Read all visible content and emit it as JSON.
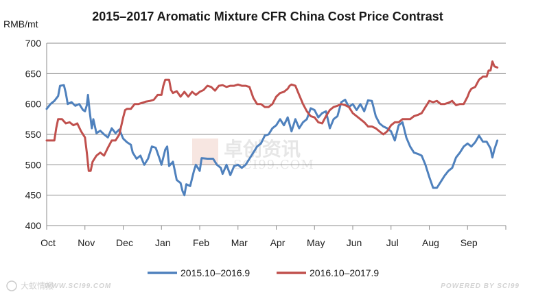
{
  "chart_data": {
    "type": "line",
    "title": "2015–2017 Aromatic Mixture CFR China Cost Price Contrast",
    "ylabel": "RMB/mt",
    "xlabel": "",
    "ylim": [
      400,
      700
    ],
    "yticks": [
      400,
      450,
      500,
      550,
      600,
      650,
      700
    ],
    "categories": [
      "Oct",
      "Nov",
      "Dec",
      "Jan",
      "Feb",
      "Mar",
      "Apr",
      "May",
      "Jun",
      "Jul",
      "Aug",
      "Sep"
    ],
    "grid": true,
    "legend": "bottom",
    "x_unit": "month index (0 = start of Oct)",
    "series": [
      {
        "name": "2015.10–2016.9",
        "color": "#4f81bd",
        "points": [
          [
            0.0,
            592
          ],
          [
            0.1,
            600
          ],
          [
            0.2,
            605
          ],
          [
            0.3,
            613
          ],
          [
            0.35,
            630
          ],
          [
            0.45,
            631
          ],
          [
            0.5,
            618
          ],
          [
            0.55,
            600
          ],
          [
            0.65,
            603
          ],
          [
            0.75,
            597
          ],
          [
            0.85,
            600
          ],
          [
            0.95,
            590
          ],
          [
            1.0,
            588
          ],
          [
            1.05,
            598
          ],
          [
            1.08,
            615
          ],
          [
            1.12,
            590
          ],
          [
            1.18,
            560
          ],
          [
            1.22,
            575
          ],
          [
            1.3,
            552
          ],
          [
            1.4,
            556
          ],
          [
            1.5,
            550
          ],
          [
            1.6,
            545
          ],
          [
            1.7,
            560
          ],
          [
            1.8,
            552
          ],
          [
            1.9,
            558
          ],
          [
            2.0,
            543
          ],
          [
            2.1,
            537
          ],
          [
            2.2,
            533
          ],
          [
            2.25,
            520
          ],
          [
            2.35,
            510
          ],
          [
            2.45,
            515
          ],
          [
            2.55,
            500
          ],
          [
            2.65,
            510
          ],
          [
            2.75,
            530
          ],
          [
            2.85,
            528
          ],
          [
            2.95,
            510
          ],
          [
            3.0,
            500
          ],
          [
            3.1,
            525
          ],
          [
            3.15,
            530
          ],
          [
            3.2,
            498
          ],
          [
            3.3,
            505
          ],
          [
            3.4,
            475
          ],
          [
            3.5,
            470
          ],
          [
            3.55,
            457
          ],
          [
            3.6,
            450
          ],
          [
            3.65,
            468
          ],
          [
            3.75,
            465
          ],
          [
            3.85,
            490
          ],
          [
            3.9,
            500
          ],
          [
            4.0,
            490
          ],
          [
            4.05,
            511
          ],
          [
            4.2,
            510
          ],
          [
            4.35,
            510
          ],
          [
            4.45,
            500
          ],
          [
            4.55,
            495
          ],
          [
            4.6,
            485
          ],
          [
            4.7,
            500
          ],
          [
            4.8,
            483
          ],
          [
            4.9,
            498
          ],
          [
            5.0,
            500
          ],
          [
            5.1,
            495
          ],
          [
            5.2,
            500
          ],
          [
            5.3,
            510
          ],
          [
            5.4,
            520
          ],
          [
            5.5,
            530
          ],
          [
            5.6,
            535
          ],
          [
            5.7,
            548
          ],
          [
            5.8,
            550
          ],
          [
            5.9,
            560
          ],
          [
            6.0,
            565
          ],
          [
            6.1,
            575
          ],
          [
            6.2,
            565
          ],
          [
            6.3,
            578
          ],
          [
            6.4,
            555
          ],
          [
            6.5,
            575
          ],
          [
            6.6,
            560
          ],
          [
            6.7,
            570
          ],
          [
            6.8,
            575
          ],
          [
            6.9,
            593
          ],
          [
            7.0,
            590
          ],
          [
            7.1,
            578
          ],
          [
            7.2,
            585
          ],
          [
            7.3,
            588
          ],
          [
            7.4,
            560
          ],
          [
            7.5,
            575
          ],
          [
            7.6,
            580
          ],
          [
            7.7,
            603
          ],
          [
            7.8,
            607
          ],
          [
            7.9,
            595
          ],
          [
            8.0,
            600
          ],
          [
            8.1,
            590
          ],
          [
            8.2,
            600
          ],
          [
            8.3,
            588
          ],
          [
            8.4,
            606
          ],
          [
            8.5,
            605
          ],
          [
            8.6,
            580
          ],
          [
            8.7,
            568
          ],
          [
            8.8,
            563
          ],
          [
            8.9,
            560
          ],
          [
            9.0,
            555
          ],
          [
            9.1,
            540
          ],
          [
            9.2,
            565
          ],
          [
            9.3,
            570
          ],
          [
            9.4,
            545
          ],
          [
            9.5,
            530
          ],
          [
            9.6,
            520
          ],
          [
            9.7,
            518
          ],
          [
            9.8,
            515
          ],
          [
            9.9,
            500
          ],
          [
            10.0,
            480
          ],
          [
            10.1,
            462
          ],
          [
            10.2,
            462
          ],
          [
            10.3,
            472
          ],
          [
            10.4,
            482
          ],
          [
            10.5,
            490
          ],
          [
            10.6,
            495
          ],
          [
            10.7,
            512
          ],
          [
            10.8,
            520
          ],
          [
            10.9,
            530
          ],
          [
            11.0,
            535
          ],
          [
            11.1,
            530
          ],
          [
            11.2,
            537
          ],
          [
            11.3,
            548
          ],
          [
            11.4,
            538
          ],
          [
            11.5,
            538
          ],
          [
            11.6,
            527
          ],
          [
            11.65,
            512
          ],
          [
            11.7,
            525
          ],
          [
            11.78,
            540
          ]
        ]
      },
      {
        "name": "2016.10–2017.9",
        "color": "#c0504d",
        "points": [
          [
            0.0,
            540
          ],
          [
            0.1,
            540
          ],
          [
            0.2,
            540
          ],
          [
            0.25,
            560
          ],
          [
            0.3,
            575
          ],
          [
            0.4,
            575
          ],
          [
            0.5,
            568
          ],
          [
            0.6,
            570
          ],
          [
            0.7,
            565
          ],
          [
            0.8,
            568
          ],
          [
            0.9,
            555
          ],
          [
            1.0,
            545
          ],
          [
            1.05,
            520
          ],
          [
            1.1,
            490
          ],
          [
            1.15,
            490
          ],
          [
            1.2,
            505
          ],
          [
            1.3,
            515
          ],
          [
            1.4,
            520
          ],
          [
            1.5,
            515
          ],
          [
            1.6,
            528
          ],
          [
            1.7,
            540
          ],
          [
            1.8,
            540
          ],
          [
            1.9,
            550
          ],
          [
            2.0,
            578
          ],
          [
            2.05,
            590
          ],
          [
            2.1,
            592
          ],
          [
            2.2,
            592
          ],
          [
            2.3,
            600
          ],
          [
            2.4,
            600
          ],
          [
            2.5,
            602
          ],
          [
            2.6,
            604
          ],
          [
            2.7,
            605
          ],
          [
            2.8,
            607
          ],
          [
            2.9,
            615
          ],
          [
            3.0,
            615
          ],
          [
            3.05,
            630
          ],
          [
            3.1,
            640
          ],
          [
            3.2,
            640
          ],
          [
            3.25,
            623
          ],
          [
            3.3,
            618
          ],
          [
            3.4,
            621
          ],
          [
            3.5,
            612
          ],
          [
            3.6,
            620
          ],
          [
            3.7,
            612
          ],
          [
            3.8,
            620
          ],
          [
            3.9,
            615
          ],
          [
            4.0,
            620
          ],
          [
            4.1,
            623
          ],
          [
            4.2,
            630
          ],
          [
            4.3,
            628
          ],
          [
            4.4,
            622
          ],
          [
            4.5,
            630
          ],
          [
            4.6,
            631
          ],
          [
            4.7,
            628
          ],
          [
            4.8,
            630
          ],
          [
            4.9,
            630
          ],
          [
            5.0,
            632
          ],
          [
            5.1,
            630
          ],
          [
            5.2,
            630
          ],
          [
            5.3,
            628
          ],
          [
            5.4,
            610
          ],
          [
            5.5,
            600
          ],
          [
            5.6,
            600
          ],
          [
            5.7,
            595
          ],
          [
            5.8,
            595
          ],
          [
            5.9,
            600
          ],
          [
            6.0,
            612
          ],
          [
            6.1,
            618
          ],
          [
            6.2,
            620
          ],
          [
            6.3,
            625
          ],
          [
            6.35,
            630
          ],
          [
            6.4,
            632
          ],
          [
            6.5,
            630
          ],
          [
            6.6,
            615
          ],
          [
            6.7,
            600
          ],
          [
            6.8,
            588
          ],
          [
            6.9,
            580
          ],
          [
            7.0,
            578
          ],
          [
            7.1,
            570
          ],
          [
            7.2,
            568
          ],
          [
            7.3,
            580
          ],
          [
            7.4,
            590
          ],
          [
            7.5,
            595
          ],
          [
            7.6,
            597
          ],
          [
            7.7,
            600
          ],
          [
            7.8,
            598
          ],
          [
            7.9,
            595
          ],
          [
            8.0,
            585
          ],
          [
            8.1,
            580
          ],
          [
            8.2,
            575
          ],
          [
            8.3,
            570
          ],
          [
            8.4,
            563
          ],
          [
            8.5,
            563
          ],
          [
            8.6,
            560
          ],
          [
            8.7,
            555
          ],
          [
            8.8,
            550
          ],
          [
            8.9,
            555
          ],
          [
            9.0,
            565
          ],
          [
            9.1,
            570
          ],
          [
            9.2,
            570
          ],
          [
            9.3,
            575
          ],
          [
            9.4,
            575
          ],
          [
            9.5,
            575
          ],
          [
            9.6,
            580
          ],
          [
            9.7,
            582
          ],
          [
            9.8,
            585
          ],
          [
            9.9,
            595
          ],
          [
            10.0,
            605
          ],
          [
            10.1,
            603
          ],
          [
            10.2,
            605
          ],
          [
            10.3,
            600
          ],
          [
            10.4,
            600
          ],
          [
            10.5,
            602
          ],
          [
            10.6,
            605
          ],
          [
            10.7,
            598
          ],
          [
            10.8,
            600
          ],
          [
            10.9,
            600
          ],
          [
            11.0,
            612
          ],
          [
            11.05,
            620
          ],
          [
            11.1,
            625
          ],
          [
            11.2,
            628
          ],
          [
            11.3,
            640
          ],
          [
            11.4,
            645
          ],
          [
            11.5,
            645
          ],
          [
            11.55,
            655
          ],
          [
            11.6,
            655
          ],
          [
            11.65,
            670
          ],
          [
            11.7,
            662
          ],
          [
            11.78,
            660
          ]
        ]
      }
    ]
  },
  "watermark": {
    "name_cn": "卓创资讯",
    "site": "SCI99.COM"
  },
  "footer": {
    "left_cn": "大蚁情报",
    "left_url": "WWW.SCI99.COM",
    "right": "POWERED BY SCI99"
  }
}
